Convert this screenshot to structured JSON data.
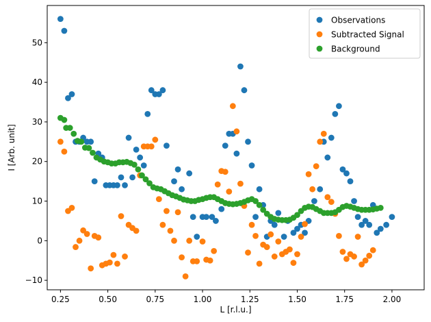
{
  "chart_data": {
    "type": "scatter",
    "xlabel": "L [r.l.u.]",
    "ylabel": "I [Arb. unit]",
    "xlim": [
      0.18,
      2.17
    ],
    "ylim": [
      -12.4,
      59.4
    ],
    "xticks": [
      "0.25",
      "0.50",
      "0.75",
      "1.00",
      "1.25",
      "1.50",
      "1.75",
      "2.00"
    ],
    "yticks": [
      "−10",
      "0",
      "10",
      "20",
      "30",
      "40",
      "50"
    ],
    "legend_position": "top-right",
    "series": [
      {
        "name": "Observations",
        "color": "#1f77b4",
        "points": [
          [
            0.25,
            56
          ],
          [
            0.27,
            53
          ],
          [
            0.29,
            36
          ],
          [
            0.31,
            37
          ],
          [
            0.33,
            25
          ],
          [
            0.35,
            25
          ],
          [
            0.37,
            26
          ],
          [
            0.39,
            25
          ],
          [
            0.41,
            25
          ],
          [
            0.43,
            15
          ],
          [
            0.45,
            22
          ],
          [
            0.47,
            21
          ],
          [
            0.49,
            14
          ],
          [
            0.51,
            14
          ],
          [
            0.53,
            14
          ],
          [
            0.55,
            14
          ],
          [
            0.57,
            16
          ],
          [
            0.59,
            14
          ],
          [
            0.61,
            26
          ],
          [
            0.63,
            16
          ],
          [
            0.65,
            23
          ],
          [
            0.67,
            21
          ],
          [
            0.69,
            19
          ],
          [
            0.71,
            32
          ],
          [
            0.73,
            38
          ],
          [
            0.75,
            37
          ],
          [
            0.77,
            37
          ],
          [
            0.79,
            38
          ],
          [
            0.81,
            24
          ],
          [
            0.85,
            15
          ],
          [
            0.87,
            18
          ],
          [
            0.89,
            13
          ],
          [
            0.93,
            17
          ],
          [
            0.95,
            6
          ],
          [
            0.97,
            1
          ],
          [
            1.0,
            6
          ],
          [
            1.02,
            6
          ],
          [
            1.05,
            6
          ],
          [
            1.07,
            5
          ],
          [
            1.1,
            8
          ],
          [
            1.12,
            24
          ],
          [
            1.14,
            27
          ],
          [
            1.16,
            27
          ],
          [
            1.18,
            22
          ],
          [
            1.2,
            44
          ],
          [
            1.22,
            38
          ],
          [
            1.24,
            25
          ],
          [
            1.26,
            19
          ],
          [
            1.28,
            6
          ],
          [
            1.3,
            13
          ],
          [
            1.32,
            9
          ],
          [
            1.34,
            1
          ],
          [
            1.36,
            5
          ],
          [
            1.38,
            4
          ],
          [
            1.4,
            7
          ],
          [
            1.43,
            1
          ],
          [
            1.45,
            5
          ],
          [
            1.48,
            2
          ],
          [
            1.5,
            3
          ],
          [
            1.52,
            4
          ],
          [
            1.54,
            2
          ],
          [
            1.56,
            5
          ],
          [
            1.59,
            10
          ],
          [
            1.62,
            13
          ],
          [
            1.64,
            25
          ],
          [
            1.66,
            21
          ],
          [
            1.68,
            26
          ],
          [
            1.7,
            32
          ],
          [
            1.72,
            34
          ],
          [
            1.74,
            18
          ],
          [
            1.76,
            17
          ],
          [
            1.78,
            15
          ],
          [
            1.8,
            10
          ],
          [
            1.82,
            6
          ],
          [
            1.84,
            4
          ],
          [
            1.86,
            5
          ],
          [
            1.88,
            4
          ],
          [
            1.9,
            9
          ],
          [
            1.92,
            2
          ],
          [
            1.94,
            3
          ],
          [
            1.97,
            4
          ],
          [
            2.0,
            6
          ]
        ]
      },
      {
        "name": "Subtracted Signal",
        "color": "#ff7f0e",
        "points": [
          [
            0.25,
            25
          ],
          [
            0.27,
            22.5
          ],
          [
            0.29,
            7.5
          ],
          [
            0.31,
            8.3
          ],
          [
            0.33,
            -1.6
          ],
          [
            0.35,
            0
          ],
          [
            0.37,
            2.6
          ],
          [
            0.39,
            1.7
          ],
          [
            0.41,
            -7
          ],
          [
            0.43,
            1.2
          ],
          [
            0.45,
            0.8
          ],
          [
            0.47,
            -6.2
          ],
          [
            0.49,
            -5.8
          ],
          [
            0.51,
            -5.5
          ],
          [
            0.53,
            -3.6
          ],
          [
            0.55,
            -5.8
          ],
          [
            0.57,
            6.2
          ],
          [
            0.59,
            -4
          ],
          [
            0.61,
            4
          ],
          [
            0.63,
            3.2
          ],
          [
            0.65,
            2.5
          ],
          [
            0.67,
            16.5
          ],
          [
            0.69,
            23.8
          ],
          [
            0.71,
            23.8
          ],
          [
            0.73,
            23.8
          ],
          [
            0.75,
            25.5
          ],
          [
            0.77,
            10.5
          ],
          [
            0.79,
            4
          ],
          [
            0.81,
            7.5
          ],
          [
            0.83,
            2.5
          ],
          [
            0.85,
            0
          ],
          [
            0.87,
            7.2
          ],
          [
            0.89,
            -4.2
          ],
          [
            0.91,
            -9
          ],
          [
            0.93,
            0
          ],
          [
            0.95,
            -5.2
          ],
          [
            0.97,
            -5.2
          ],
          [
            1.0,
            -0.2
          ],
          [
            1.02,
            -4.8
          ],
          [
            1.04,
            -5
          ],
          [
            1.06,
            -2.6
          ],
          [
            1.08,
            14.2
          ],
          [
            1.1,
            17.6
          ],
          [
            1.12,
            17.4
          ],
          [
            1.14,
            12.4
          ],
          [
            1.16,
            34
          ],
          [
            1.18,
            27.6
          ],
          [
            1.2,
            14.4
          ],
          [
            1.22,
            8.8
          ],
          [
            1.24,
            -3
          ],
          [
            1.26,
            4
          ],
          [
            1.28,
            1.2
          ],
          [
            1.3,
            -5.8
          ],
          [
            1.32,
            -1
          ],
          [
            1.34,
            -1.6
          ],
          [
            1.36,
            1.6
          ],
          [
            1.38,
            -4
          ],
          [
            1.4,
            -0.2
          ],
          [
            1.42,
            -3.4
          ],
          [
            1.44,
            -2.8
          ],
          [
            1.46,
            -2.2
          ],
          [
            1.48,
            -5.6
          ],
          [
            1.5,
            -3.4
          ],
          [
            1.52,
            1
          ],
          [
            1.54,
            4.2
          ],
          [
            1.56,
            16.8
          ],
          [
            1.58,
            13
          ],
          [
            1.6,
            18.8
          ],
          [
            1.62,
            25
          ],
          [
            1.64,
            27
          ],
          [
            1.66,
            11
          ],
          [
            1.68,
            9.8
          ],
          [
            1.7,
            6.8
          ],
          [
            1.72,
            1.2
          ],
          [
            1.74,
            -2.8
          ],
          [
            1.76,
            -4.6
          ],
          [
            1.78,
            -3.4
          ],
          [
            1.8,
            -4
          ],
          [
            1.82,
            1
          ],
          [
            1.84,
            -6
          ],
          [
            1.86,
            -5
          ],
          [
            1.88,
            -3.8
          ],
          [
            1.9,
            -2.4
          ]
        ]
      },
      {
        "name": "Background",
        "color": "#2ca02c",
        "points": [
          [
            0.25,
            31
          ],
          [
            0.27,
            30.5
          ],
          [
            0.28,
            28.5
          ],
          [
            0.3,
            28.5
          ],
          [
            0.32,
            27
          ],
          [
            0.34,
            25.2
          ],
          [
            0.36,
            25
          ],
          [
            0.38,
            23.5
          ],
          [
            0.4,
            23.4
          ],
          [
            0.42,
            22.2
          ],
          [
            0.44,
            21
          ],
          [
            0.46,
            20.5
          ],
          [
            0.48,
            20
          ],
          [
            0.5,
            19.8
          ],
          [
            0.52,
            19.5
          ],
          [
            0.54,
            19.5
          ],
          [
            0.56,
            19.8
          ],
          [
            0.58,
            19.8
          ],
          [
            0.6,
            19.9
          ],
          [
            0.62,
            19.6
          ],
          [
            0.64,
            19.2
          ],
          [
            0.66,
            18
          ],
          [
            0.68,
            16.5
          ],
          [
            0.7,
            15.5
          ],
          [
            0.72,
            14.5
          ],
          [
            0.74,
            13.5
          ],
          [
            0.76,
            13.2
          ],
          [
            0.78,
            13
          ],
          [
            0.8,
            12.5
          ],
          [
            0.82,
            12
          ],
          [
            0.84,
            11.5
          ],
          [
            0.86,
            11.2
          ],
          [
            0.88,
            10.8
          ],
          [
            0.9,
            10.4
          ],
          [
            0.92,
            10.2
          ],
          [
            0.94,
            10
          ],
          [
            0.96,
            10
          ],
          [
            0.98,
            10.3
          ],
          [
            1.0,
            10.5
          ],
          [
            1.02,
            10.8
          ],
          [
            1.04,
            11
          ],
          [
            1.06,
            11
          ],
          [
            1.08,
            10.5
          ],
          [
            1.1,
            10
          ],
          [
            1.12,
            9.5
          ],
          [
            1.14,
            9.3
          ],
          [
            1.16,
            9.2
          ],
          [
            1.18,
            9.3
          ],
          [
            1.2,
            9.5
          ],
          [
            1.22,
            9.8
          ],
          [
            1.24,
            10.2
          ],
          [
            1.26,
            10.5
          ],
          [
            1.28,
            10
          ],
          [
            1.3,
            9
          ],
          [
            1.32,
            7.8
          ],
          [
            1.34,
            6.8
          ],
          [
            1.36,
            6
          ],
          [
            1.38,
            5.5
          ],
          [
            1.4,
            5.3
          ],
          [
            1.42,
            5.2
          ],
          [
            1.44,
            5.2
          ],
          [
            1.46,
            5.3
          ],
          [
            1.48,
            5.8
          ],
          [
            1.5,
            6.5
          ],
          [
            1.52,
            7.5
          ],
          [
            1.54,
            8.3
          ],
          [
            1.56,
            8.6
          ],
          [
            1.58,
            8.5
          ],
          [
            1.6,
            8
          ],
          [
            1.62,
            7.5
          ],
          [
            1.64,
            7
          ],
          [
            1.66,
            7
          ],
          [
            1.68,
            7
          ],
          [
            1.7,
            7.2
          ],
          [
            1.72,
            7.8
          ],
          [
            1.74,
            8.5
          ],
          [
            1.76,
            8.8
          ],
          [
            1.78,
            8.6
          ],
          [
            1.8,
            8.3
          ],
          [
            1.82,
            8
          ],
          [
            1.84,
            7.8
          ],
          [
            1.86,
            7.8
          ],
          [
            1.88,
            7.8
          ],
          [
            1.9,
            7.9
          ],
          [
            1.92,
            8.1
          ],
          [
            1.94,
            8.3
          ]
        ]
      }
    ]
  }
}
